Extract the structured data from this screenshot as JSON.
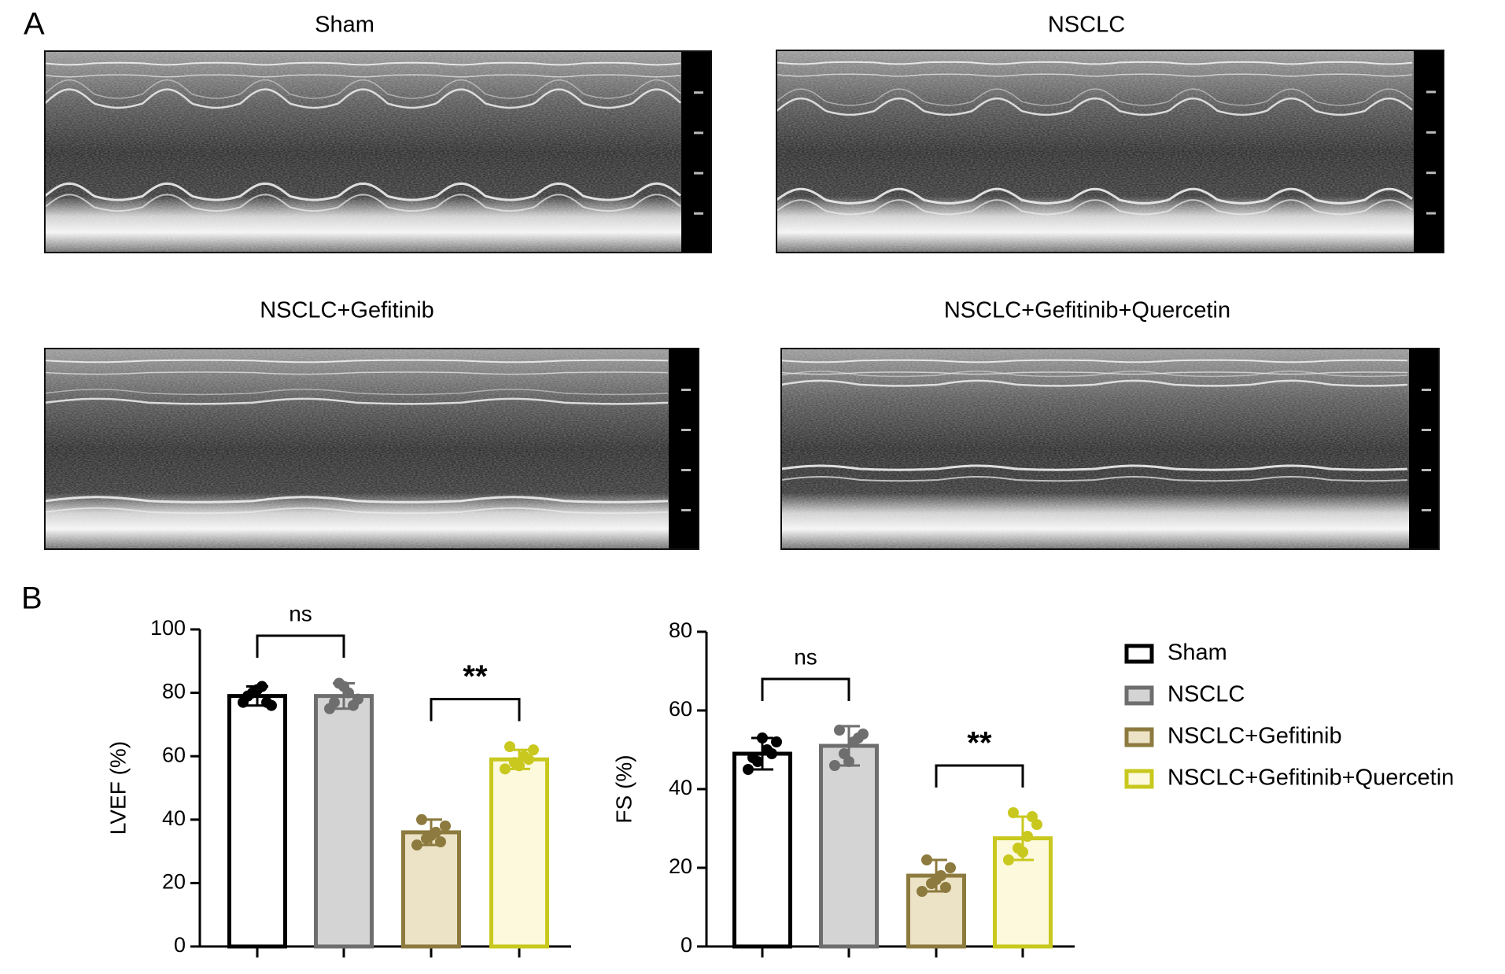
{
  "panel_labels": [
    "A",
    "B"
  ],
  "echo_titles": [
    "Sham",
    "NSCLC",
    "NSCLC+Gefitinib",
    "NSCLC+Gefitinib+Quercetin"
  ],
  "legend": {
    "names": [
      "Sham",
      "NSCLC",
      "NSCLC+Gefitinib",
      "NSCLC+Gefitinib+Quercetin"
    ],
    "edge_colors": [
      "#000000",
      "#6e6e6e",
      "#8c7a3e",
      "#c8c81e"
    ],
    "fill_colors": [
      "#ffffff",
      "#d4d4d4",
      "#ece3c6",
      "#fcf9dc"
    ]
  },
  "chart_data": [
    {
      "type": "bar",
      "ylabel": "LVEF (%)",
      "ylim": [
        0,
        100
      ],
      "yticks": [
        0,
        20,
        40,
        60,
        80,
        100
      ],
      "values": [
        79,
        79,
        36,
        59
      ],
      "errors": [
        3,
        4,
        4,
        3
      ],
      "points": [
        [
          77,
          80,
          82,
          76,
          79,
          81,
          77
        ],
        [
          75,
          83,
          80,
          78,
          77,
          82,
          76
        ],
        [
          32,
          34,
          36,
          38,
          40,
          35,
          33
        ],
        [
          56,
          58,
          60,
          62,
          63,
          57,
          59
        ]
      ],
      "annotations": [
        {
          "text": "ns",
          "between": [
            0,
            1
          ]
        },
        {
          "text": "**",
          "between": [
            2,
            3
          ]
        }
      ]
    },
    {
      "type": "bar",
      "ylabel": "FS (%)",
      "ylim": [
        0,
        80
      ],
      "yticks": [
        0,
        20,
        40,
        60,
        80
      ],
      "values": [
        49,
        51,
        18,
        27.5
      ],
      "errors": [
        4,
        5,
        4,
        5.5
      ],
      "points": [
        [
          45,
          47,
          50,
          52,
          48,
          53,
          49
        ],
        [
          46,
          49,
          52,
          54,
          55,
          47,
          53
        ],
        [
          14,
          16,
          18,
          20,
          22,
          17,
          15
        ],
        [
          22,
          25,
          28,
          31,
          34,
          24,
          33
        ]
      ],
      "annotations": [
        {
          "text": "ns",
          "between": [
            0,
            1
          ]
        },
        {
          "text": "**",
          "between": [
            2,
            3
          ]
        }
      ]
    }
  ]
}
